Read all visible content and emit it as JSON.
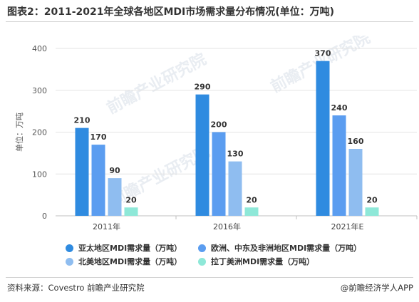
{
  "title": "图表2：2011-2021年全球各地区MDI市场需求量分布情况(单位：万吨)",
  "source": "资料来源：Covestro 前瞻产业研究院",
  "brand": "@前瞻经济学人APP",
  "watermark": "前瞻产业研究院",
  "chart_data": {
    "type": "bar",
    "categories": [
      "2011年",
      "2016年",
      "2021年E"
    ],
    "series": [
      {
        "name": "亚太地区MDI需求量（万吨）",
        "values": [
          210,
          290,
          370
        ],
        "color": "#2f8be0"
      },
      {
        "name": "欧洲、中东及非洲地区MDI需求量（万吨）",
        "values": [
          170,
          200,
          240
        ],
        "color": "#5b9df0"
      },
      {
        "name": "北美地区MDI需求量（万吨）",
        "values": [
          90,
          130,
          160
        ],
        "color": "#8fbdf0"
      },
      {
        "name": "拉丁美洲MDI需求量（万吨）",
        "values": [
          20,
          20,
          20
        ],
        "color": "#8ee8d8"
      }
    ],
    "ylabel": "单位：万吨",
    "ylim": [
      0,
      400
    ],
    "yticks": [
      0,
      100,
      200,
      300,
      400
    ],
    "grid": true,
    "legend_position": "bottom"
  }
}
